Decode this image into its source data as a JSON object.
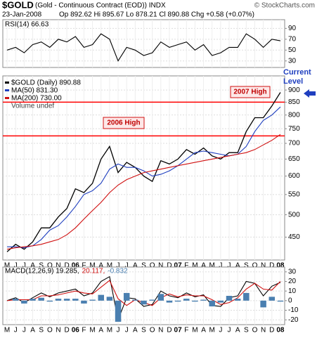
{
  "header": {
    "title": "$GOLD",
    "subtitle": "(Gold - Continuous Contract (EOD)) INDX",
    "source": "© StockCharts.com",
    "date": "23-Jan-2008",
    "quote": "Op 892.62 Hi 895.67 Lo 878.21 Cl 890.88 Chg +0.58 (+0.07%)"
  },
  "chart_data": [
    {
      "type": "line",
      "title": "RSI(14) 66.63",
      "ylim": [
        18,
        106
      ],
      "yticks": [
        30,
        50,
        70,
        90
      ],
      "series": [
        {
          "name": null,
          "color": "#000000",
          "values": [
            50,
            55,
            45,
            60,
            65,
            55,
            70,
            65,
            75,
            55,
            60,
            80,
            70,
            30,
            55,
            50,
            40,
            45,
            65,
            55,
            60,
            65,
            50,
            60,
            40,
            45,
            55,
            55,
            80,
            70,
            55,
            70,
            67
          ]
        }
      ]
    },
    {
      "type": "line",
      "log_scale": true,
      "ylim": [
        404,
        962
      ],
      "yticks": [
        450,
        500,
        550,
        600,
        650,
        700,
        750,
        800,
        850,
        900
      ],
      "categories": [
        "M",
        "J",
        "J",
        "A",
        "S",
        "O",
        "N",
        "D",
        "06",
        "F",
        "M",
        "A",
        "M",
        "J",
        "J",
        "A",
        "S",
        "O",
        "N",
        "D",
        "07",
        "F",
        "M",
        "A",
        "M",
        "J",
        "J",
        "A",
        "S",
        "O",
        "N",
        "D",
        "08"
      ],
      "series": [
        {
          "name": "$GOLD (Daily) 890.88",
          "color": "#000000",
          "values": [
            420,
            435,
            425,
            440,
            470,
            470,
            495,
            515,
            565,
            555,
            580,
            650,
            690,
            610,
            640,
            625,
            600,
            585,
            645,
            635,
            650,
            680,
            665,
            685,
            660,
            650,
            670,
            670,
            740,
            790,
            790,
            835,
            890
          ]
        },
        {
          "name": "MA(50) 831.30",
          "color": "#1f3fbf",
          "values": [
            430,
            430,
            428,
            432,
            445,
            465,
            475,
            495,
            520,
            550,
            560,
            580,
            620,
            635,
            625,
            625,
            615,
            600,
            605,
            615,
            630,
            650,
            670,
            675,
            670,
            665,
            660,
            665,
            690,
            740,
            780,
            800,
            831
          ]
        },
        {
          "name": "MA(200) 730.00",
          "color": "#d01010",
          "values": [
            425,
            428,
            430,
            432,
            435,
            440,
            445,
            455,
            470,
            490,
            510,
            530,
            555,
            575,
            590,
            600,
            610,
            615,
            620,
            625,
            630,
            635,
            640,
            645,
            650,
            655,
            660,
            665,
            670,
            680,
            695,
            710,
            730
          ]
        }
      ],
      "extra_legend": "Volume undef",
      "horizontal_lines": [
        {
          "value": 850,
          "color": "#ff0000"
        },
        {
          "value": 725,
          "color": "#ff0000"
        }
      ],
      "annotations": [
        "2007 High",
        "2006 High",
        "Current Level"
      ]
    },
    {
      "type": "line",
      "ylim": [
        -25,
        35
      ],
      "yticks": [
        -20,
        -10,
        0,
        10,
        20,
        30
      ],
      "categories": [
        "M",
        "J",
        "J",
        "A",
        "S",
        "O",
        "N",
        "D",
        "06",
        "F",
        "M",
        "A",
        "M",
        "J",
        "J",
        "A",
        "S",
        "O",
        "N",
        "D",
        "07",
        "F",
        "M",
        "A",
        "M",
        "J",
        "J",
        "A",
        "S",
        "O",
        "N",
        "D",
        "08"
      ],
      "series": [
        {
          "name": "MACD(12,26,9) 19.285,",
          "color": "#000000",
          "values": [
            0,
            3,
            -2,
            3,
            8,
            4,
            8,
            10,
            12,
            5,
            8,
            20,
            25,
            -20,
            3,
            2,
            -6,
            -4,
            10,
            5,
            3,
            8,
            4,
            6,
            -5,
            -6,
            3,
            5,
            20,
            18,
            5,
            15,
            19
          ]
        },
        {
          "name": "20.117,",
          "color": "#d01010",
          "values": [
            0,
            1,
            1,
            1,
            5,
            5,
            6,
            8,
            10,
            8,
            7,
            14,
            21,
            2,
            -5,
            1,
            -2,
            -5,
            3,
            7,
            4,
            6,
            5,
            5,
            1,
            -4,
            -2,
            3,
            12,
            18,
            12,
            11,
            20
          ]
        },
        {
          "name": "-0.832",
          "color": "#4a7fb0",
          "type": "bar",
          "values": [
            0,
            2,
            -3,
            2,
            3,
            -1,
            2,
            2,
            2,
            -3,
            1,
            6,
            4,
            -22,
            8,
            1,
            -4,
            1,
            7,
            -2,
            -1,
            2,
            -1,
            1,
            -6,
            -2,
            5,
            2,
            8,
            0,
            -7,
            4,
            -1
          ]
        }
      ]
    }
  ]
}
